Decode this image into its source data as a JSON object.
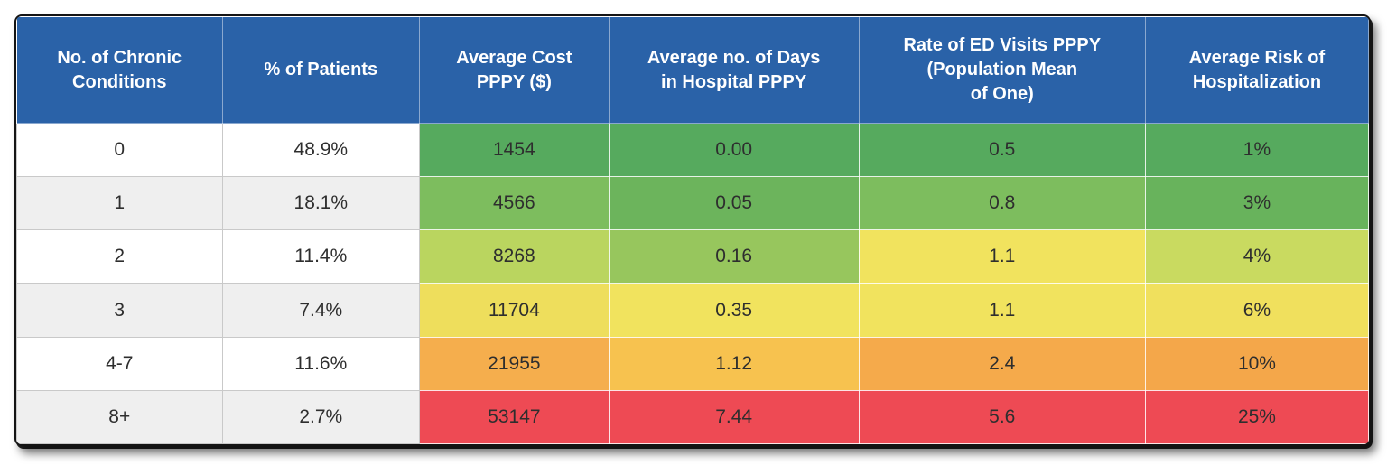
{
  "theme": {
    "header_bg": "#2a62a8",
    "header_text": "#ffffff",
    "row_bg": "#ffffff",
    "row_alt_bg": "#efefef",
    "green": "#56aa5e",
    "yellow": "#f1e35e",
    "orange": "#f5ae4d",
    "red": "#ee4a54"
  },
  "table": {
    "headers": [
      {
        "label": "No. of Chronic\nConditions"
      },
      {
        "label": "% of Patients"
      },
      {
        "label": "Average Cost\nPPPY ($)"
      },
      {
        "label": "Average no. of Days\nin Hospital PPPY"
      },
      {
        "label": "Rate of ED Visits PPPY\n(Population Mean\nof One)"
      },
      {
        "label": "Average Risk of\nHospitalization"
      }
    ],
    "rows": [
      {
        "cells": [
          {
            "text": "0",
            "bg": "#ffffff"
          },
          {
            "text": "48.9%",
            "bg": "#ffffff"
          },
          {
            "text": "1454",
            "bg": "#56aa5e"
          },
          {
            "text": "0.00",
            "bg": "#56aa5e"
          },
          {
            "text": "0.5",
            "bg": "#56aa5e"
          },
          {
            "text": "1%",
            "bg": "#56aa5e"
          }
        ]
      },
      {
        "cells": [
          {
            "text": "1",
            "bg": "#efefef"
          },
          {
            "text": "18.1%",
            "bg": "#efefef"
          },
          {
            "text": "4566",
            "bg": "#7dbd5e"
          },
          {
            "text": "0.05",
            "bg": "#6cb45c"
          },
          {
            "text": "0.8",
            "bg": "#7dbd5e"
          },
          {
            "text": "3%",
            "bg": "#68b35c"
          }
        ]
      },
      {
        "cells": [
          {
            "text": "2",
            "bg": "#ffffff"
          },
          {
            "text": "11.4%",
            "bg": "#ffffff"
          },
          {
            "text": "8268",
            "bg": "#bad55f"
          },
          {
            "text": "0.16",
            "bg": "#97c65d"
          },
          {
            "text": "1.1",
            "bg": "#f1e35e"
          },
          {
            "text": "4%",
            "bg": "#c9da60"
          }
        ]
      },
      {
        "cells": [
          {
            "text": "3",
            "bg": "#efefef"
          },
          {
            "text": "7.4%",
            "bg": "#efefef"
          },
          {
            "text": "11704",
            "bg": "#eede5c"
          },
          {
            "text": "0.35",
            "bg": "#f1e35e"
          },
          {
            "text": "1.1",
            "bg": "#f1e35e"
          },
          {
            "text": "6%",
            "bg": "#f0e05d"
          }
        ]
      },
      {
        "cells": [
          {
            "text": "4-7",
            "bg": "#ffffff"
          },
          {
            "text": "11.6%",
            "bg": "#ffffff"
          },
          {
            "text": "21955",
            "bg": "#f5ae4d"
          },
          {
            "text": "1.12",
            "bg": "#f7c24f"
          },
          {
            "text": "2.4",
            "bg": "#f5aa4b"
          },
          {
            "text": "10%",
            "bg": "#f4a74a"
          }
        ]
      },
      {
        "cells": [
          {
            "text": "8+",
            "bg": "#efefef"
          },
          {
            "text": "2.7%",
            "bg": "#efefef"
          },
          {
            "text": "53147",
            "bg": "#ee4a54"
          },
          {
            "text": "7.44",
            "bg": "#ee4a54"
          },
          {
            "text": "5.6",
            "bg": "#ee4a54"
          },
          {
            "text": "25%",
            "bg": "#ee4a54"
          }
        ]
      }
    ]
  },
  "chart_data": {
    "type": "table",
    "title": "",
    "columns": [
      "No. of Chronic Conditions",
      "% of Patients",
      "Average Cost PPPY ($)",
      "Average no. of Days in Hospital PPPY",
      "Rate of ED Visits PPPY (Population Mean of One)",
      "Average Risk of Hospitalization"
    ],
    "rows": [
      [
        "0",
        "48.9%",
        "1454",
        "0.00",
        "0.5",
        "1%"
      ],
      [
        "1",
        "18.1%",
        "4566",
        "0.05",
        "0.8",
        "3%"
      ],
      [
        "2",
        "11.4%",
        "8268",
        "0.16",
        "1.1",
        "4%"
      ],
      [
        "3",
        "7.4%",
        "11704",
        "0.35",
        "1.1",
        "6%"
      ],
      [
        "4-7",
        "11.6%",
        "21955",
        "1.12",
        "2.4",
        "10%"
      ],
      [
        "8+",
        "2.7%",
        "53147",
        "7.44",
        "5.6",
        "25%"
      ]
    ],
    "legend": "heatmap coloring green (low) to red (high) on columns 3-6",
    "layout": {
      "header_position": "top",
      "grid": true
    }
  }
}
